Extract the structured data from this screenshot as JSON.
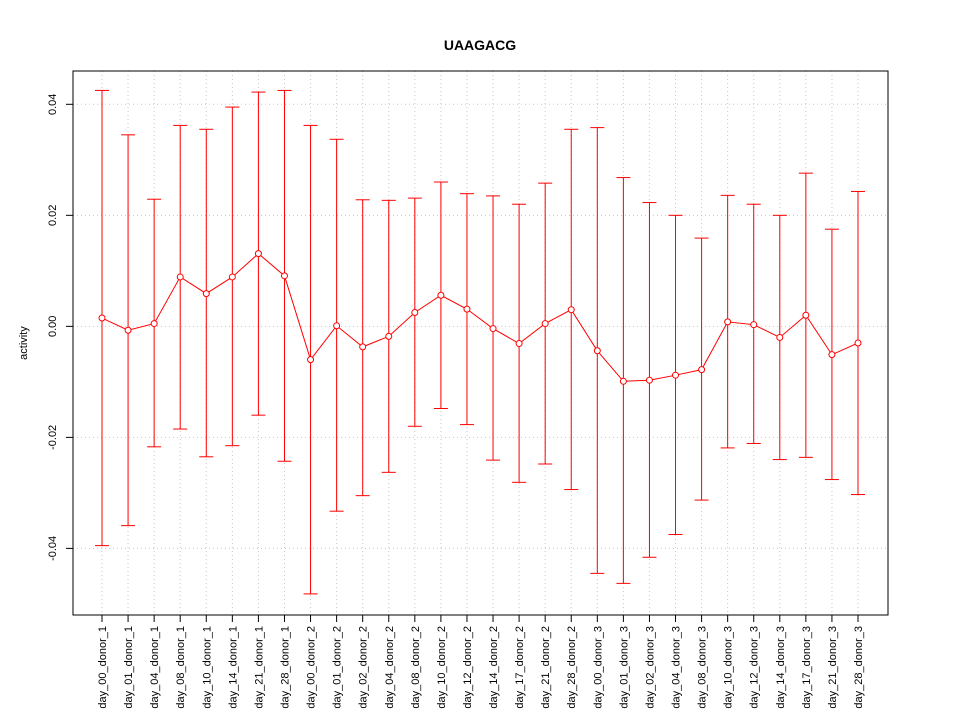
{
  "chart_data": {
    "type": "line",
    "title": "UAAGACG",
    "xlabel": "",
    "ylabel": "activity",
    "ylim": [
      -0.052,
      0.046
    ],
    "yticks": [
      -0.04,
      -0.02,
      0.0,
      0.02,
      0.04
    ],
    "ytick_labels": [
      "-0.04",
      "-0.02",
      "0.00",
      "0.02",
      "0.04"
    ],
    "grid": true,
    "line_color": "#ff0000",
    "grid_color": "#c8c8c8",
    "categories": [
      "day_00_donor_1",
      "day_01_donor_1",
      "day_04_donor_1",
      "day_08_donor_1",
      "day_10_donor_1",
      "day_14_donor_1",
      "day_21_donor_1",
      "day_28_donor_1",
      "day_00_donor_2",
      "day_01_donor_2",
      "day_02_donor_2",
      "day_04_donor_2",
      "day_08_donor_2",
      "day_10_donor_2",
      "day_12_donor_2",
      "day_14_donor_2",
      "day_17_donor_2",
      "day_21_donor_2",
      "day_28_donor_2",
      "day_00_donor_3",
      "day_01_donor_3",
      "day_02_donor_3",
      "day_04_donor_3",
      "day_08_donor_3",
      "day_10_donor_3",
      "day_12_donor_3",
      "day_14_donor_3",
      "day_17_donor_3",
      "day_21_donor_3",
      "day_28_donor_3"
    ],
    "values": [
      0.0015,
      -0.0007,
      0.0005,
      0.0089,
      0.0059,
      0.0089,
      0.0131,
      0.0091,
      -0.006,
      0.0001,
      -0.0037,
      -0.0018,
      0.0025,
      0.0056,
      0.0031,
      -0.0004,
      -0.0031,
      0.0005,
      0.003,
      -0.0044,
      -0.0099,
      -0.0097,
      -0.0088,
      -0.0078,
      0.0008,
      0.0003,
      -0.002,
      0.002,
      -0.0051,
      -0.003
    ],
    "upper": [
      0.0425,
      0.0345,
      0.0229,
      0.0362,
      0.0355,
      0.0395,
      0.0422,
      0.0425,
      0.0362,
      0.0337,
      0.0228,
      0.0227,
      0.0231,
      0.026,
      0.0239,
      0.0235,
      0.022,
      0.0258,
      0.0355,
      0.0358,
      0.0268,
      0.0223,
      0.02,
      0.0159,
      0.0236,
      0.022,
      0.02,
      0.0276,
      0.0175,
      0.0243
    ],
    "lower": [
      -0.0395,
      -0.0359,
      -0.0217,
      -0.0185,
      -0.0235,
      -0.0215,
      -0.016,
      -0.0243,
      -0.0482,
      -0.0333,
      -0.0305,
      -0.0263,
      -0.018,
      -0.0148,
      -0.0177,
      -0.0241,
      -0.0281,
      -0.0248,
      -0.0294,
      -0.0445,
      -0.0463,
      -0.0416,
      -0.0375,
      -0.0313,
      -0.0219,
      -0.0211,
      -0.024,
      -0.0236,
      -0.0276,
      -0.0303
    ]
  }
}
